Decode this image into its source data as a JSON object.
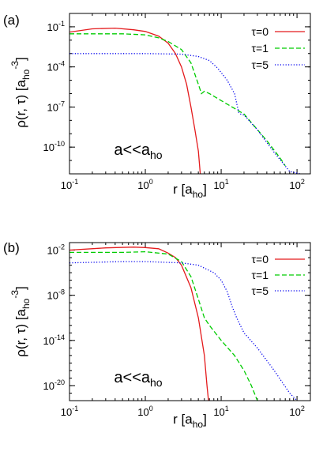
{
  "chart_data": [
    {
      "type": "line",
      "panel_label": "(a)",
      "annotation": {
        "main": "a<<a",
        "sub": "ho"
      },
      "xlabel": {
        "main": "r [a",
        "sub": "ho",
        "tail": "]"
      },
      "ylabel": {
        "main": "ρ(r, τ) [a",
        "sub": "ho",
        "sup": "-3",
        "tail": "]"
      },
      "xscale": "log",
      "yscale": "log",
      "xlim": [
        0.1,
        150
      ],
      "ylim": [
        1e-12,
        1
      ],
      "xticks": [
        {
          "v": 0.1,
          "b": "10",
          "e": "-1"
        },
        {
          "v": 1,
          "b": "10",
          "e": "0"
        },
        {
          "v": 10,
          "b": "10",
          "e": "1"
        },
        {
          "v": 100,
          "b": "10",
          "e": "2"
        }
      ],
      "yticks": [
        {
          "v": 0.1,
          "b": "10",
          "e": "-1"
        },
        {
          "v": 0.0001,
          "b": "10",
          "e": "-4"
        },
        {
          "v": 1e-07,
          "b": "10",
          "e": "-7"
        },
        {
          "v": 1e-10,
          "b": "10",
          "e": "-10"
        }
      ],
      "legend_position": "top-right",
      "series": [
        {
          "name": "τ=0",
          "color": "#e41a1c",
          "dash": "solid",
          "points": [
            [
              0.1,
              0.04
            ],
            [
              0.2,
              0.07
            ],
            [
              0.4,
              0.08
            ],
            [
              0.7,
              0.06
            ],
            [
              1,
              0.045
            ],
            [
              1.5,
              0.02
            ],
            [
              2,
              0.006
            ],
            [
              2.5,
              0.001
            ],
            [
              3,
              0.0001
            ],
            [
              3.5,
              5e-06
            ],
            [
              4,
              1e-07
            ],
            [
              4.5,
              2e-09
            ],
            [
              5,
              5e-11
            ],
            [
              5.3,
              1e-12
            ]
          ]
        },
        {
          "name": "τ=1",
          "color": "#00cc00",
          "dash": "dashed",
          "points": [
            [
              0.1,
              0.03
            ],
            [
              0.5,
              0.03
            ],
            [
              1,
              0.025
            ],
            [
              1.5,
              0.015
            ],
            [
              2,
              0.008
            ],
            [
              3,
              0.002
            ],
            [
              4,
              0.0002
            ],
            [
              5,
              5e-06
            ],
            [
              5.5,
              1e-06
            ],
            [
              6,
              1.5e-06
            ],
            [
              7,
              1e-06
            ],
            [
              10,
              3e-07
            ],
            [
              20,
              3e-08
            ],
            [
              40,
              3e-10
            ],
            [
              60,
              1.5e-11
            ],
            [
              70,
              4e-12
            ]
          ]
        },
        {
          "name": "τ=5",
          "color": "#0000ee",
          "dash": "dotted",
          "points": [
            [
              0.1,
              0.001
            ],
            [
              1,
              0.001
            ],
            [
              3,
              0.0009
            ],
            [
              5,
              0.0006
            ],
            [
              7,
              0.0003
            ],
            [
              9,
              8e-05
            ],
            [
              12,
              1e-05
            ],
            [
              15,
              1e-06
            ],
            [
              17,
              4e-08
            ],
            [
              18,
              3e-08
            ],
            [
              20,
              2.5e-08
            ],
            [
              30,
              2e-09
            ],
            [
              50,
              4e-11
            ],
            [
              80,
              1.5e-12
            ],
            [
              110,
              1e-12
            ]
          ]
        }
      ]
    },
    {
      "type": "line",
      "panel_label": "(b)",
      "annotation": {
        "main": "a<<a",
        "sub": "ho"
      },
      "xlabel": {
        "main": "r [a",
        "sub": "ho",
        "tail": "]"
      },
      "ylabel": {
        "main": "ρ(r, τ) [a",
        "sub": "ho",
        "sup": "-3",
        "tail": "]"
      },
      "xscale": "log",
      "yscale": "log",
      "xlim": [
        0.1,
        150
      ],
      "ylim": [
        1e-22,
        0.1
      ],
      "xticks": [
        {
          "v": 0.1,
          "b": "10",
          "e": "-1"
        },
        {
          "v": 1,
          "b": "10",
          "e": "0"
        },
        {
          "v": 10,
          "b": "10",
          "e": "1"
        },
        {
          "v": 100,
          "b": "10",
          "e": "2"
        }
      ],
      "yticks": [
        {
          "v": 0.01,
          "b": "10",
          "e": "-2"
        },
        {
          "v": 1e-08,
          "b": "10",
          "e": "-8"
        },
        {
          "v": 1e-14,
          "b": "10",
          "e": "-14"
        },
        {
          "v": 1e-20,
          "b": "10",
          "e": "-20"
        }
      ],
      "legend_position": "top-right",
      "series": [
        {
          "name": "τ=0",
          "color": "#e41a1c",
          "dash": "solid",
          "points": [
            [
              0.1,
              0.01
            ],
            [
              0.3,
              0.02
            ],
            [
              0.7,
              0.025
            ],
            [
              1,
              0.022
            ],
            [
              1.5,
              0.015
            ],
            [
              2,
              0.004
            ],
            [
              2.5,
              0.001
            ],
            [
              3,
              0.0001
            ],
            [
              4,
              1e-07
            ],
            [
              5,
              1e-11
            ],
            [
              6,
              1e-16
            ],
            [
              6.5,
              1e-20
            ],
            [
              6.8,
              1e-22
            ]
          ]
        },
        {
          "name": "τ=1",
          "color": "#00cc00",
          "dash": "dashed",
          "points": [
            [
              0.1,
              0.005
            ],
            [
              0.5,
              0.005
            ],
            [
              1,
              0.006
            ],
            [
              2,
              0.003
            ],
            [
              3,
              0.0003
            ],
            [
              4,
              3e-06
            ],
            [
              5,
              3e-09
            ],
            [
              6,
              1e-11
            ],
            [
              7,
              1e-12
            ],
            [
              10,
              1e-14
            ],
            [
              15,
              1e-16
            ],
            [
              20,
              1e-18
            ],
            [
              25,
              1e-20
            ],
            [
              30,
              1e-22
            ]
          ]
        },
        {
          "name": "τ=5",
          "color": "#0000ee",
          "dash": "dotted",
          "points": [
            [
              0.1,
              0.0002
            ],
            [
              0.5,
              0.0003
            ],
            [
              1,
              0.0003
            ],
            [
              3,
              0.0002
            ],
            [
              5,
              0.0001
            ],
            [
              8,
              1e-05
            ],
            [
              10,
              1e-06
            ],
            [
              12,
              3e-08
            ],
            [
              14,
              3e-10
            ],
            [
              16,
              1e-11
            ],
            [
              20,
              1e-13
            ],
            [
              30,
              1e-15
            ],
            [
              50,
              1e-18
            ],
            [
              80,
              1e-21
            ],
            [
              100,
              1e-22
            ]
          ]
        }
      ]
    }
  ]
}
